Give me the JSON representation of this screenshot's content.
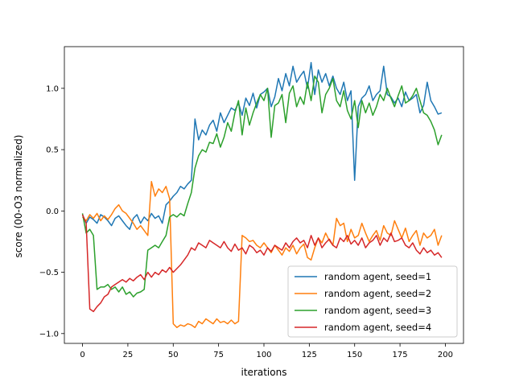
{
  "chart_data": {
    "type": "line",
    "title": "",
    "xlabel": "iterations",
    "ylabel": "score (00-O3 normalized)",
    "xlim": [
      -10,
      210
    ],
    "ylim": [
      -1.08,
      1.34
    ],
    "xticks": [
      0,
      25,
      50,
      75,
      100,
      125,
      150,
      175,
      200
    ],
    "xtick_labels": [
      "0",
      "25",
      "50",
      "75",
      "100",
      "125",
      "150",
      "175",
      "200"
    ],
    "yticks": [
      -1.0,
      -0.5,
      0.0,
      0.5,
      1.0
    ],
    "ytick_labels": [
      "−1.0",
      "−0.5",
      "0.0",
      "0.5",
      "1.0"
    ],
    "grid": false,
    "legend_position": "lower-right",
    "x_step": 2,
    "series": [
      {
        "name": "random agent, seed=1",
        "color": "#1f77b4",
        "values": [
          -0.03,
          -0.1,
          -0.05,
          -0.07,
          -0.1,
          -0.03,
          -0.05,
          -0.08,
          -0.12,
          -0.06,
          -0.04,
          -0.08,
          -0.12,
          -0.15,
          -0.06,
          -0.03,
          -0.1,
          -0.05,
          -0.08,
          -0.02,
          -0.06,
          -0.04,
          -0.1,
          0.05,
          0.08,
          0.12,
          0.15,
          0.2,
          0.18,
          0.22,
          0.25,
          0.75,
          0.58,
          0.66,
          0.62,
          0.7,
          0.74,
          0.65,
          0.8,
          0.72,
          0.78,
          0.84,
          0.82,
          0.88,
          0.78,
          0.92,
          0.86,
          0.96,
          0.84,
          0.95,
          0.97,
          1.0,
          0.85,
          0.93,
          1.08,
          0.98,
          1.12,
          1.02,
          1.18,
          1.05,
          1.1,
          1.14,
          1.0,
          1.21,
          0.95,
          1.15,
          1.05,
          1.12,
          1.02,
          1.1,
          1.0,
          0.95,
          1.05,
          0.9,
          0.98,
          0.25,
          0.85,
          0.92,
          0.95,
          1.02,
          0.9,
          0.95,
          0.98,
          1.18,
          0.95,
          0.93,
          0.88,
          0.92,
          0.85,
          0.97,
          0.9,
          0.92,
          0.95,
          0.8,
          0.86,
          1.05,
          0.9,
          0.85,
          0.79,
          0.8
        ]
      },
      {
        "name": "random agent, seed=2",
        "color": "#ff7f0e",
        "values": [
          -0.05,
          -0.08,
          -0.03,
          -0.06,
          -0.02,
          -0.08,
          -0.04,
          -0.07,
          -0.03,
          0.02,
          0.05,
          0.0,
          -0.02,
          -0.06,
          -0.1,
          -0.15,
          -0.12,
          -0.16,
          -0.2,
          0.24,
          0.12,
          0.18,
          0.15,
          0.2,
          0.1,
          -0.92,
          -0.95,
          -0.93,
          -0.94,
          -0.92,
          -0.93,
          -0.95,
          -0.9,
          -0.92,
          -0.88,
          -0.9,
          -0.92,
          -0.88,
          -0.91,
          -0.9,
          -0.92,
          -0.89,
          -0.92,
          -0.9,
          -0.2,
          -0.22,
          -0.25,
          -0.24,
          -0.28,
          -0.3,
          -0.26,
          -0.3,
          -0.34,
          -0.28,
          -0.32,
          -0.36,
          -0.3,
          -0.33,
          -0.28,
          -0.35,
          -0.3,
          -0.27,
          -0.38,
          -0.4,
          -0.3,
          -0.22,
          -0.26,
          -0.18,
          -0.24,
          -0.28,
          -0.06,
          -0.12,
          -0.1,
          -0.25,
          -0.15,
          -0.22,
          -0.2,
          -0.1,
          -0.18,
          -0.25,
          -0.2,
          -0.16,
          -0.24,
          -0.12,
          -0.18,
          -0.2,
          -0.08,
          -0.15,
          -0.22,
          -0.14,
          -0.25,
          -0.2,
          -0.16,
          -0.28,
          -0.18,
          -0.22,
          -0.2,
          -0.15,
          -0.28,
          -0.2
        ]
      },
      {
        "name": "random agent, seed=3",
        "color": "#2ca02c",
        "values": [
          -0.02,
          -0.18,
          -0.15,
          -0.2,
          -0.64,
          -0.62,
          -0.62,
          -0.6,
          -0.64,
          -0.62,
          -0.66,
          -0.62,
          -0.68,
          -0.66,
          -0.7,
          -0.67,
          -0.66,
          -0.64,
          -0.32,
          -0.3,
          -0.28,
          -0.3,
          -0.25,
          -0.2,
          -0.05,
          -0.03,
          -0.05,
          -0.02,
          -0.04,
          0.06,
          0.15,
          0.35,
          0.45,
          0.5,
          0.48,
          0.56,
          0.55,
          0.63,
          0.52,
          0.6,
          0.72,
          0.65,
          0.8,
          0.9,
          0.62,
          0.84,
          0.7,
          0.8,
          0.88,
          0.95,
          0.9,
          1.0,
          0.6,
          0.86,
          0.88,
          0.95,
          0.72,
          0.96,
          1.02,
          0.85,
          0.93,
          0.87,
          1.05,
          0.9,
          1.1,
          1.05,
          0.8,
          0.95,
          1.0,
          1.08,
          0.9,
          0.85,
          0.98,
          0.82,
          0.75,
          0.9,
          0.68,
          0.9,
          0.8,
          0.88,
          0.78,
          0.85,
          0.95,
          0.9,
          1.0,
          0.92,
          0.85,
          0.94,
          1.02,
          0.88,
          0.9,
          0.94,
          1.0,
          0.9,
          0.8,
          0.78,
          0.73,
          0.66,
          0.54,
          0.62
        ]
      },
      {
        "name": "random agent, seed=4",
        "color": "#d62728",
        "values": [
          -0.03,
          -0.1,
          -0.8,
          -0.82,
          -0.78,
          -0.75,
          -0.7,
          -0.68,
          -0.62,
          -0.6,
          -0.58,
          -0.56,
          -0.58,
          -0.55,
          -0.57,
          -0.54,
          -0.52,
          -0.56,
          -0.5,
          -0.54,
          -0.5,
          -0.52,
          -0.48,
          -0.5,
          -0.46,
          -0.5,
          -0.47,
          -0.44,
          -0.4,
          -0.36,
          -0.3,
          -0.32,
          -0.26,
          -0.28,
          -0.3,
          -0.24,
          -0.26,
          -0.28,
          -0.3,
          -0.25,
          -0.3,
          -0.33,
          -0.27,
          -0.32,
          -0.3,
          -0.35,
          -0.28,
          -0.3,
          -0.34,
          -0.32,
          -0.36,
          -0.3,
          -0.33,
          -0.28,
          -0.3,
          -0.32,
          -0.26,
          -0.3,
          -0.25,
          -0.22,
          -0.26,
          -0.24,
          -0.3,
          -0.2,
          -0.28,
          -0.22,
          -0.3,
          -0.26,
          -0.23,
          -0.28,
          -0.3,
          -0.22,
          -0.25,
          -0.2,
          -0.27,
          -0.24,
          -0.28,
          -0.22,
          -0.3,
          -0.26,
          -0.24,
          -0.2,
          -0.28,
          -0.22,
          -0.25,
          -0.18,
          -0.25,
          -0.24,
          -0.22,
          -0.28,
          -0.3,
          -0.26,
          -0.32,
          -0.35,
          -0.3,
          -0.34,
          -0.32,
          -0.36,
          -0.34,
          -0.38
        ]
      }
    ]
  }
}
